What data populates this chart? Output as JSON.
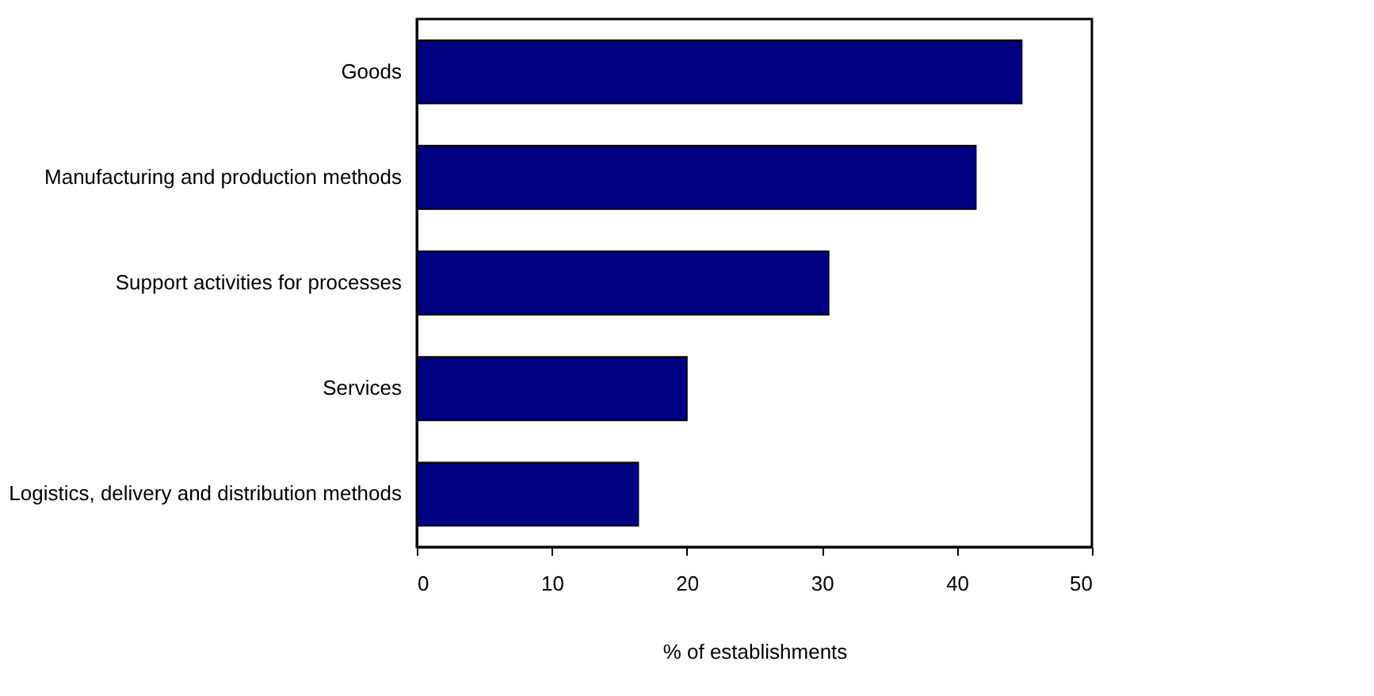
{
  "chart_data": {
    "type": "bar",
    "orientation": "horizontal",
    "xlabel": "% of establishments",
    "categories": [
      "Goods",
      "Manufacturing and production methods",
      "Support activities for processes",
      "Services",
      "Logistics, delivery and distribution methods"
    ],
    "values": [
      44.8,
      41.4,
      30.5,
      20.0,
      16.4
    ],
    "color": "#000080",
    "xlim": [
      0,
      50
    ],
    "xticks": [
      0,
      10,
      20,
      30,
      40,
      50
    ],
    "grid": false
  }
}
